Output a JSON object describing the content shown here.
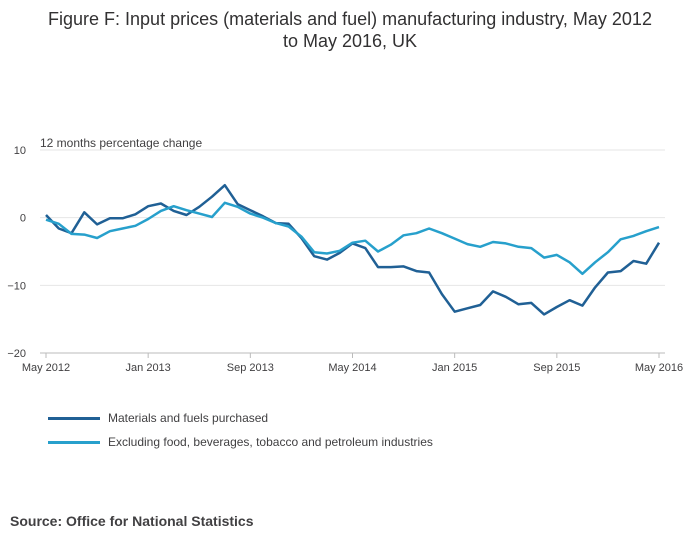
{
  "chart_data": {
    "type": "line",
    "title_line1": "Figure F: Input prices (materials and fuel) manufacturing industry, May 2012",
    "title_line2": "to May 2016, UK",
    "ylabel": "12 months percentage change",
    "xlabel": "",
    "ylim": [
      -20,
      10
    ],
    "yticks": [
      10,
      0,
      -10,
      -20
    ],
    "ytick_labels": [
      "10",
      "0",
      "−10",
      "−20"
    ],
    "xtick_labels": [
      {
        "label": "May 2012",
        "index": 0
      },
      {
        "label": "Jan 2013",
        "index": 8
      },
      {
        "label": "Sep 2013",
        "index": 16
      },
      {
        "label": "May 2014",
        "index": 24
      },
      {
        "label": "Jan 2015",
        "index": 32
      },
      {
        "label": "Sep 2015",
        "index": 40
      },
      {
        "label": "May 2016",
        "index": 48
      }
    ],
    "grid": true,
    "legend_position": "bottom-left",
    "series": [
      {
        "name": "Materials and fuels purchased",
        "color": "#206095",
        "values": [
          0.4,
          -1.6,
          -2.3,
          0.8,
          -1.0,
          -0.1,
          -0.1,
          0.5,
          1.7,
          2.1,
          1.0,
          0.4,
          1.6,
          3.1,
          4.8,
          2.0,
          1.1,
          0.2,
          -0.8,
          -0.9,
          -3.0,
          -5.7,
          -6.2,
          -5.2,
          -3.8,
          -4.5,
          -7.3,
          -7.3,
          -7.2,
          -7.9,
          -8.1,
          -11.3,
          -13.9,
          -13.4,
          -12.9,
          -10.9,
          -11.7,
          -12.8,
          -12.6,
          -14.3,
          -13.2,
          -12.2,
          -13.0,
          -10.3,
          -8.1,
          -7.9,
          -6.4,
          -6.8,
          -3.7
        ]
      },
      {
        "name": "Excluding food, beverages, tobacco and petroleum industries",
        "color": "#27a0cc",
        "values": [
          -0.3,
          -0.9,
          -2.4,
          -2.5,
          -3.0,
          -2.0,
          -1.6,
          -1.2,
          -0.2,
          1.0,
          1.7,
          1.1,
          0.6,
          0.1,
          2.2,
          1.6,
          0.6,
          0.0,
          -0.8,
          -1.3,
          -2.8,
          -5.1,
          -5.3,
          -4.9,
          -3.7,
          -3.4,
          -5.0,
          -4.0,
          -2.6,
          -2.3,
          -1.6,
          -2.3,
          -3.1,
          -3.9,
          -4.3,
          -3.6,
          -3.8,
          -4.3,
          -4.5,
          -5.9,
          -5.5,
          -6.6,
          -8.3,
          -6.6,
          -5.1,
          -3.2,
          -2.7,
          -2.0,
          -1.4
        ]
      }
    ]
  },
  "source": "Source: Office for National Statistics"
}
